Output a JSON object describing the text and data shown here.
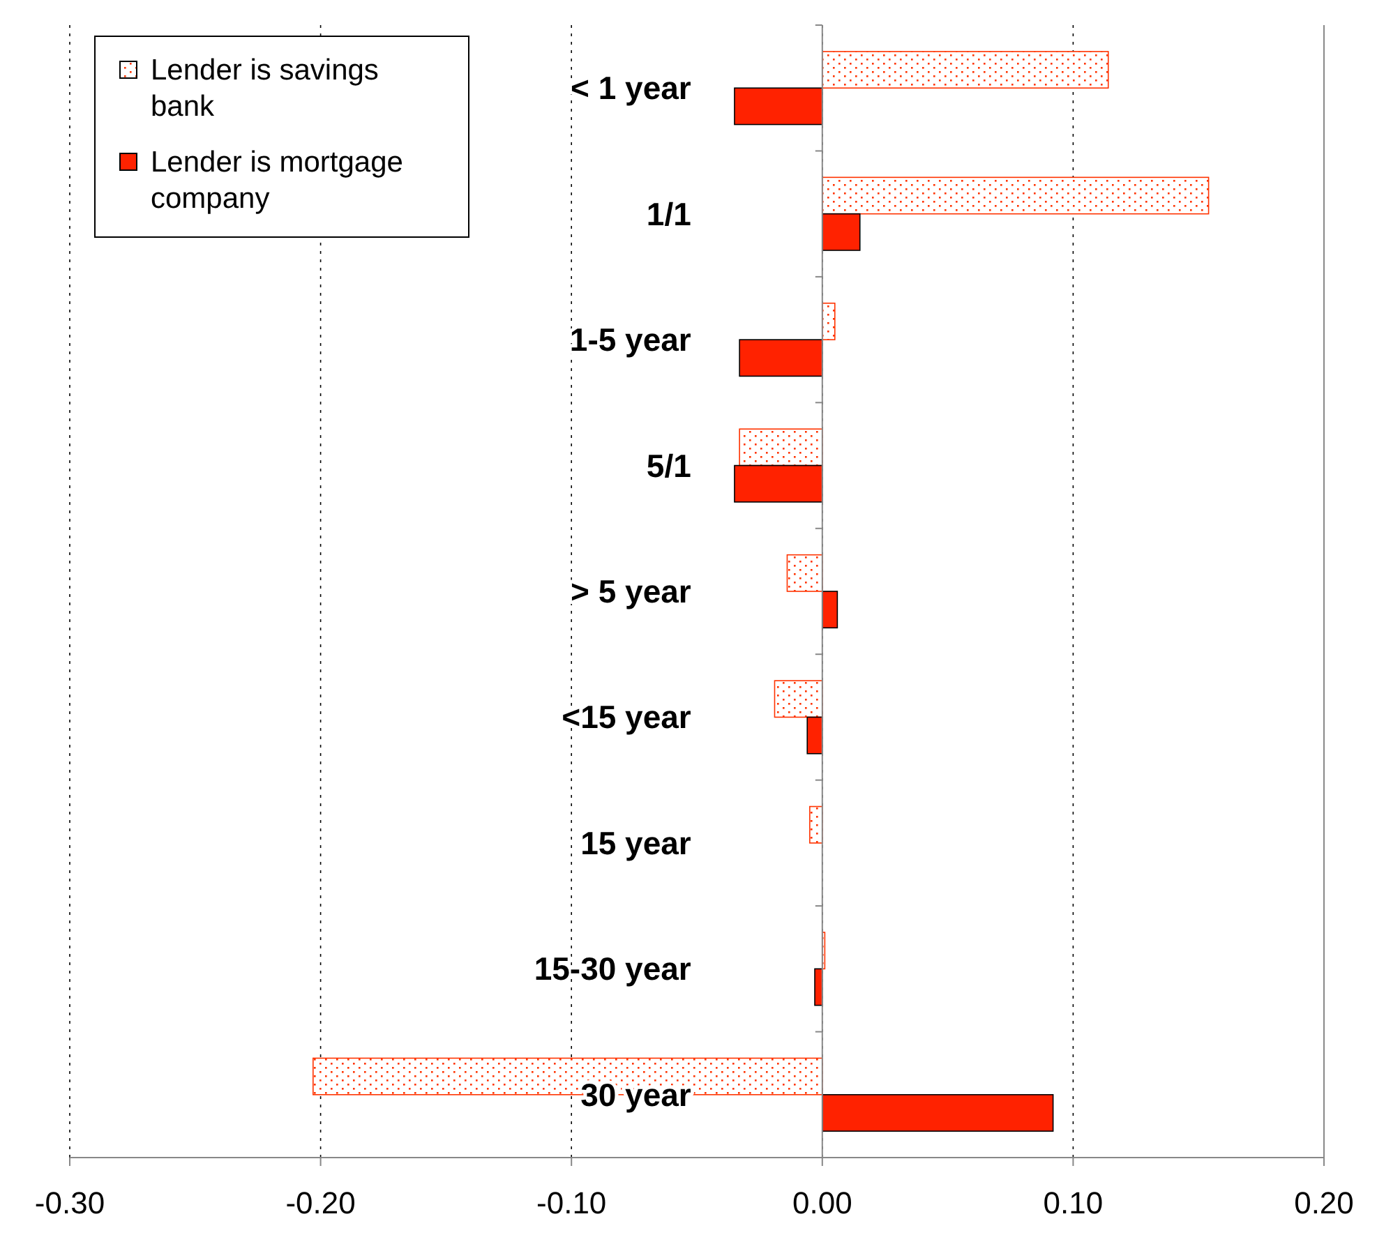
{
  "chart_data": {
    "type": "bar",
    "orientation": "horizontal",
    "categories": [
      "< 1 year",
      "1/1",
      "1-5 year",
      "5/1",
      "> 5 year",
      "<15 year",
      "15 year",
      "15-30 year",
      "30 year"
    ],
    "series": [
      {
        "name": "Lender is savings bank",
        "color": "#ff3300",
        "values": [
          0.114,
          0.154,
          0.005,
          -0.033,
          -0.014,
          -0.019,
          -0.005,
          0.001,
          -0.203
        ]
      },
      {
        "name": "Lender is mortgage company",
        "color": "#ff2200",
        "values": [
          -0.035,
          0.015,
          -0.033,
          -0.035,
          0.006,
          -0.006,
          null,
          -0.003,
          0.092
        ]
      }
    ],
    "xlim": [
      -0.3,
      0.2
    ],
    "xticks": [
      {
        "value": -0.3,
        "label": "-0.30"
      },
      {
        "value": -0.2,
        "label": "-0.20"
      },
      {
        "value": -0.1,
        "label": "-0.10"
      },
      {
        "value": 0,
        "label": "0.00"
      },
      {
        "value": 0.1,
        "label": "0.10"
      },
      {
        "value": 0.2,
        "label": "0.20"
      }
    ],
    "grid": "x",
    "legend": "top left"
  }
}
